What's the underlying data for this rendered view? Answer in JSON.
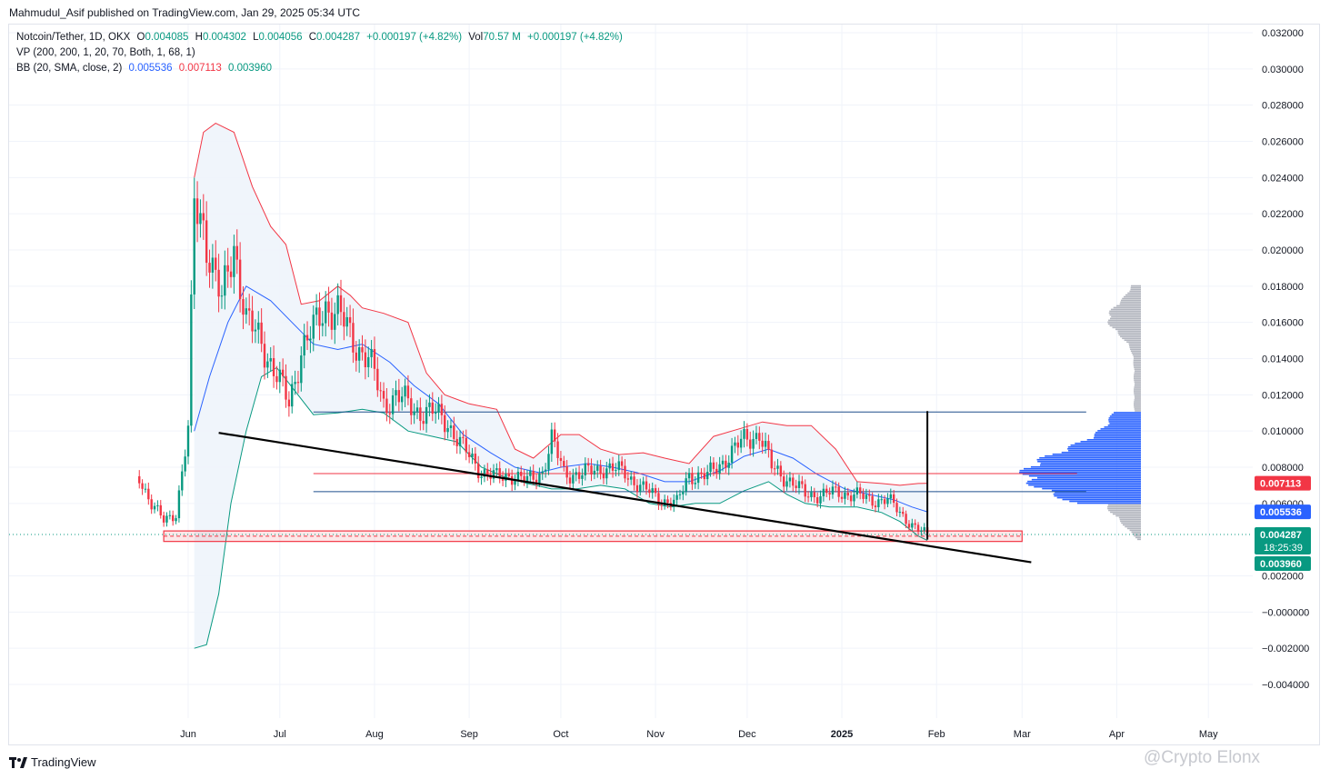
{
  "header": {
    "published": "Mahmudul_Asif published on TradingView.com, Jan 29, 2025 05:34 UTC"
  },
  "legend": {
    "symbol": "Notcoin/Tether, 1D, OKX",
    "o_label": "O",
    "o_value": "0.004085",
    "h_label": "H",
    "h_value": "0.004302",
    "l_label": "L",
    "l_value": "0.004056",
    "c_label": "C",
    "c_value": "0.004287",
    "change": "+0.000197 (+4.82%)",
    "vol_label": "Vol",
    "vol_value": "70.57 M",
    "vol_change": "+0.000197 (+4.82%)",
    "vp": "VP (200, 200, 1, 20, 70, Both, 1, 68, 1)",
    "bb": "BB (20, SMA, close, 2)",
    "bb_mid": "0.005536",
    "bb_upper": "0.007113",
    "bb_lower": "0.003960"
  },
  "colors": {
    "up": "#089981",
    "down": "#f23645",
    "basis": "#2962ff",
    "upper": "#f23645",
    "lower": "#089981",
    "band_fill": "#eef4fb",
    "trendline": "#000000",
    "vp_value_area": "#2962ff",
    "vp_outside": "#b2b5be",
    "support_zone": "#f23645"
  },
  "chart_data": {
    "type": "candlestick",
    "y_axis": {
      "min": -0.005,
      "max": 0.0325,
      "ticks": [
        "0.032000",
        "0.030000",
        "0.028000",
        "0.026000",
        "0.024000",
        "0.022000",
        "0.020000",
        "0.018000",
        "0.016000",
        "0.014000",
        "0.012000",
        "0.010000",
        "0.008000",
        "0.006000",
        "0.002000",
        "−0.000000",
        "−0.002000",
        "−0.004000"
      ]
    },
    "x_axis": {
      "labels": [
        {
          "label": "Jun",
          "date": "2024-06-01"
        },
        {
          "label": "Jul",
          "date": "2024-07-01"
        },
        {
          "label": "Aug",
          "date": "2024-08-01"
        },
        {
          "label": "Sep",
          "date": "2024-09-01"
        },
        {
          "label": "Oct",
          "date": "2024-10-01"
        },
        {
          "label": "Nov",
          "date": "2024-11-01"
        },
        {
          "label": "Dec",
          "date": "2024-12-01"
        },
        {
          "label": "2025",
          "date": "2025-01-01",
          "bold": true
        },
        {
          "label": "Feb",
          "date": "2025-02-01"
        },
        {
          "label": "Mar",
          "date": "2025-03-01"
        },
        {
          "label": "Apr",
          "date": "2025-04-01"
        },
        {
          "label": "May",
          "date": "2025-05-01"
        }
      ]
    },
    "price_path": [
      [
        "2024-05-16",
        0.0075
      ],
      [
        "2024-05-20",
        0.006
      ],
      [
        "2024-05-24",
        0.005
      ],
      [
        "2024-05-28",
        0.0055
      ],
      [
        "2024-06-01",
        0.01
      ],
      [
        "2024-06-03",
        0.0225
      ],
      [
        "2024-06-06",
        0.0215
      ],
      [
        "2024-06-09",
        0.019
      ],
      [
        "2024-06-12",
        0.017
      ],
      [
        "2024-06-16",
        0.0205
      ],
      [
        "2024-06-20",
        0.016
      ],
      [
        "2024-06-25",
        0.015
      ],
      [
        "2024-06-30",
        0.013
      ],
      [
        "2024-07-04",
        0.0115
      ],
      [
        "2024-07-08",
        0.0145
      ],
      [
        "2024-07-12",
        0.0155
      ],
      [
        "2024-07-16",
        0.017
      ],
      [
        "2024-07-20",
        0.0165
      ],
      [
        "2024-07-25",
        0.015
      ],
      [
        "2024-07-30",
        0.014
      ],
      [
        "2024-08-04",
        0.0115
      ],
      [
        "2024-08-08",
        0.012
      ],
      [
        "2024-08-14",
        0.0112
      ],
      [
        "2024-08-20",
        0.011
      ],
      [
        "2024-08-25",
        0.0105
      ],
      [
        "2024-08-30",
        0.009
      ],
      [
        "2024-09-05",
        0.0078
      ],
      [
        "2024-09-10",
        0.0074
      ],
      [
        "2024-09-15",
        0.0076
      ],
      [
        "2024-09-20",
        0.0072
      ],
      [
        "2024-09-25",
        0.0078
      ],
      [
        "2024-09-28",
        0.0095
      ],
      [
        "2024-10-02",
        0.0077
      ],
      [
        "2024-10-08",
        0.0076
      ],
      [
        "2024-10-15",
        0.008
      ],
      [
        "2024-10-22",
        0.0077
      ],
      [
        "2024-10-28",
        0.0068
      ],
      [
        "2024-11-03",
        0.0062
      ],
      [
        "2024-11-08",
        0.006
      ],
      [
        "2024-11-12",
        0.0076
      ],
      [
        "2024-11-18",
        0.0075
      ],
      [
        "2024-11-24",
        0.0085
      ],
      [
        "2024-11-30",
        0.0095
      ],
      [
        "2024-12-05",
        0.0099
      ],
      [
        "2024-12-09",
        0.008
      ],
      [
        "2024-12-14",
        0.0074
      ],
      [
        "2024-12-20",
        0.0065
      ],
      [
        "2024-12-26",
        0.0065
      ],
      [
        "2024-12-31",
        0.0066
      ],
      [
        "2025-01-05",
        0.0065
      ],
      [
        "2025-01-10",
        0.0062
      ],
      [
        "2025-01-16",
        0.0062
      ],
      [
        "2025-01-20",
        0.0055
      ],
      [
        "2025-01-26",
        0.0045
      ],
      [
        "2025-01-29",
        0.004287
      ]
    ],
    "bollinger": {
      "upper": [
        [
          "2024-06-03",
          0.024
        ],
        [
          "2024-06-06",
          0.0265
        ],
        [
          "2024-06-10",
          0.027
        ],
        [
          "2024-06-16",
          0.0265
        ],
        [
          "2024-06-22",
          0.0235
        ],
        [
          "2024-06-28",
          0.0213
        ],
        [
          "2024-07-03",
          0.0203
        ],
        [
          "2024-07-08",
          0.017
        ],
        [
          "2024-07-14",
          0.0172
        ],
        [
          "2024-07-20",
          0.018
        ],
        [
          "2024-07-24",
          0.0175
        ],
        [
          "2024-07-28",
          0.0168
        ],
        [
          "2024-08-04",
          0.0165
        ],
        [
          "2024-08-12",
          0.016
        ],
        [
          "2024-08-18",
          0.0132
        ],
        [
          "2024-08-24",
          0.012
        ],
        [
          "2024-09-01",
          0.0115
        ],
        [
          "2024-09-10",
          0.0112
        ],
        [
          "2024-09-16",
          0.009
        ],
        [
          "2024-09-22",
          0.0085
        ],
        [
          "2024-10-01",
          0.0098
        ],
        [
          "2024-10-07",
          0.0098
        ],
        [
          "2024-10-14",
          0.009
        ],
        [
          "2024-10-20",
          0.0087
        ],
        [
          "2024-10-28",
          0.0088
        ],
        [
          "2024-11-04",
          0.0085
        ],
        [
          "2024-11-12",
          0.0082
        ],
        [
          "2024-11-20",
          0.0097
        ],
        [
          "2024-11-28",
          0.0101
        ],
        [
          "2024-12-06",
          0.0105
        ],
        [
          "2024-12-14",
          0.0103
        ],
        [
          "2024-12-22",
          0.0103
        ],
        [
          "2024-12-30",
          0.009
        ],
        [
          "2025-01-06",
          0.0072
        ],
        [
          "2025-01-14",
          0.0071
        ],
        [
          "2025-01-20",
          0.007
        ],
        [
          "2025-01-26",
          0.0071
        ],
        [
          "2025-01-29",
          0.007113
        ]
      ],
      "basis": [
        [
          "2024-06-03",
          0.01
        ],
        [
          "2024-06-08",
          0.013
        ],
        [
          "2024-06-14",
          0.016
        ],
        [
          "2024-06-20",
          0.018
        ],
        [
          "2024-06-28",
          0.0172
        ],
        [
          "2024-07-05",
          0.016
        ],
        [
          "2024-07-12",
          0.0148
        ],
        [
          "2024-07-20",
          0.0145
        ],
        [
          "2024-07-28",
          0.0148
        ],
        [
          "2024-08-06",
          0.0138
        ],
        [
          "2024-08-14",
          0.0125
        ],
        [
          "2024-08-22",
          0.0115
        ],
        [
          "2024-08-30",
          0.0098
        ],
        [
          "2024-09-08",
          0.0088
        ],
        [
          "2024-09-16",
          0.008
        ],
        [
          "2024-09-24",
          0.0077
        ],
        [
          "2024-10-01",
          0.008
        ],
        [
          "2024-10-10",
          0.0082
        ],
        [
          "2024-10-18",
          0.008
        ],
        [
          "2024-10-26",
          0.0077
        ],
        [
          "2024-11-04",
          0.0072
        ],
        [
          "2024-11-12",
          0.0072
        ],
        [
          "2024-11-22",
          0.0078
        ],
        [
          "2024-11-30",
          0.0086
        ],
        [
          "2024-12-08",
          0.009
        ],
        [
          "2024-12-16",
          0.0085
        ],
        [
          "2024-12-24",
          0.0076
        ],
        [
          "2025-01-02",
          0.0068
        ],
        [
          "2025-01-10",
          0.0065
        ],
        [
          "2025-01-18",
          0.0062
        ],
        [
          "2025-01-24",
          0.0058
        ],
        [
          "2025-01-29",
          0.005536
        ]
      ],
      "lower": [
        [
          "2024-06-03",
          -0.002
        ],
        [
          "2024-06-07",
          -0.0018
        ],
        [
          "2024-06-11",
          0.001
        ],
        [
          "2024-06-15",
          0.006
        ],
        [
          "2024-06-20",
          0.01
        ],
        [
          "2024-06-25",
          0.013
        ],
        [
          "2024-06-30",
          0.0135
        ],
        [
          "2024-07-06",
          0.0122
        ],
        [
          "2024-07-12",
          0.0109
        ],
        [
          "2024-07-20",
          0.011
        ],
        [
          "2024-07-28",
          0.0112
        ],
        [
          "2024-08-04",
          0.011
        ],
        [
          "2024-08-12",
          0.01
        ],
        [
          "2024-08-20",
          0.0097
        ],
        [
          "2024-08-28",
          0.0094
        ],
        [
          "2024-09-05",
          0.008
        ],
        [
          "2024-09-12",
          0.0075
        ],
        [
          "2024-09-20",
          0.0071
        ],
        [
          "2024-09-28",
          0.0068
        ],
        [
          "2024-10-06",
          0.0068
        ],
        [
          "2024-10-14",
          0.007
        ],
        [
          "2024-10-22",
          0.0068
        ],
        [
          "2024-10-30",
          0.006
        ],
        [
          "2024-11-06",
          0.0058
        ],
        [
          "2024-11-14",
          0.006
        ],
        [
          "2024-11-22",
          0.006
        ],
        [
          "2024-11-30",
          0.0067
        ],
        [
          "2024-12-08",
          0.0072
        ],
        [
          "2024-12-14",
          0.0065
        ],
        [
          "2024-12-20",
          0.006
        ],
        [
          "2024-12-28",
          0.0058
        ],
        [
          "2025-01-06",
          0.0058
        ],
        [
          "2025-01-14",
          0.0055
        ],
        [
          "2025-01-20",
          0.005
        ],
        [
          "2025-01-26",
          0.0042
        ],
        [
          "2025-01-29",
          0.00396
        ]
      ]
    },
    "horizontal_levels": [
      {
        "name": "resistance-top",
        "value": 0.01105,
        "from": "2024-07-12",
        "to": "2025-03-22",
        "color": "#1e4f8c"
      },
      {
        "name": "red-level",
        "value": 0.00765,
        "from": "2024-07-12",
        "to": "2025-03-19",
        "color": "#f23645"
      },
      {
        "name": "blue-level",
        "value": 0.00665,
        "from": "2024-07-12",
        "to": "2025-03-22",
        "color": "#1e4f8c"
      }
    ],
    "support_zone": {
      "top": 0.00448,
      "bottom": 0.0039,
      "from": "2024-05-24",
      "to": "2025-03-01"
    },
    "trendline": {
      "from": [
        "2024-06-11",
        0.0099
      ],
      "to": [
        "2025-03-04",
        0.00275
      ]
    },
    "vertical_marker": {
      "date": "2025-01-29",
      "from": 0.004,
      "to": 0.0111
    },
    "volume_profile": {
      "price_min": 0.004,
      "price_max": 0.018,
      "value_area": [
        0.006,
        0.011
      ],
      "note": "relative volume per price row, peak near 0.0076"
    },
    "price_labels": [
      {
        "value": "0.007113",
        "price": 0.007113,
        "bg": "#f23645"
      },
      {
        "value": "0.005536",
        "price": 0.005536,
        "bg": "#2962ff"
      },
      {
        "value": "0.004287",
        "price": 0.004287,
        "bg": "#089981",
        "countdown": "18:25:39"
      },
      {
        "value": "0.003960",
        "price": 0.00396,
        "bg": "#089981"
      }
    ]
  },
  "footer": {
    "brand": "TradingView",
    "watermark": "@Crypto Elonx"
  }
}
